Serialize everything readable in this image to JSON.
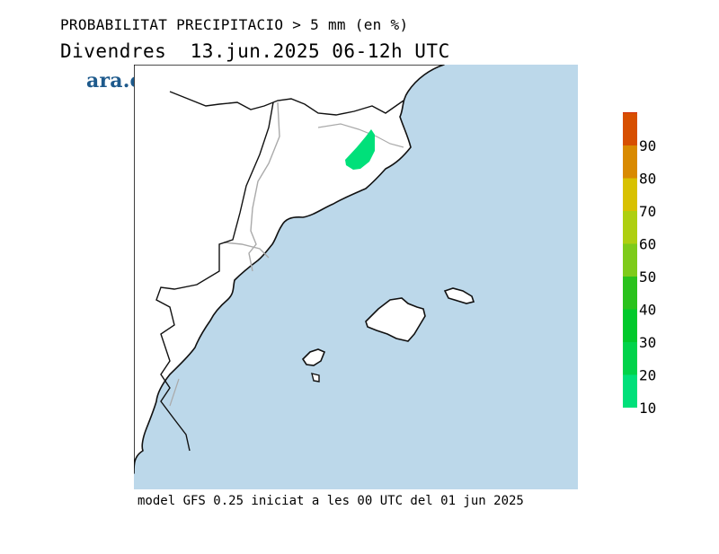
{
  "header": {
    "title": "PROBABILITAT PRECIPITACIO > 5 mm (en %)",
    "subtitle": "Divendres  13.jun.2025 06-12h UTC"
  },
  "logo": {
    "text": "ara.cat"
  },
  "footer": {
    "text": "model GFS 0.25 iniciat a les 00 UTC del 01 jun 2025"
  },
  "legend": {
    "bins": [
      {
        "label": "10",
        "color": "#00e07a"
      },
      {
        "label": "20",
        "color": "#00d34a"
      },
      {
        "label": "30",
        "color": "#00c92b"
      },
      {
        "label": "40",
        "color": "#2ac21c"
      },
      {
        "label": "50",
        "color": "#7ecb1a"
      },
      {
        "label": "60",
        "color": "#aecf10"
      },
      {
        "label": "70",
        "color": "#d8c100"
      },
      {
        "label": "80",
        "color": "#d98a00"
      },
      {
        "label": "90",
        "color": "#d74f00"
      },
      {
        "label": "",
        "color": "#cc0a0a"
      }
    ]
  },
  "map": {
    "sea_color": "#bcd8ea",
    "land_color": "#ffffff",
    "precip_area": {
      "probability_bin": "10",
      "color": "#00e07a"
    }
  }
}
